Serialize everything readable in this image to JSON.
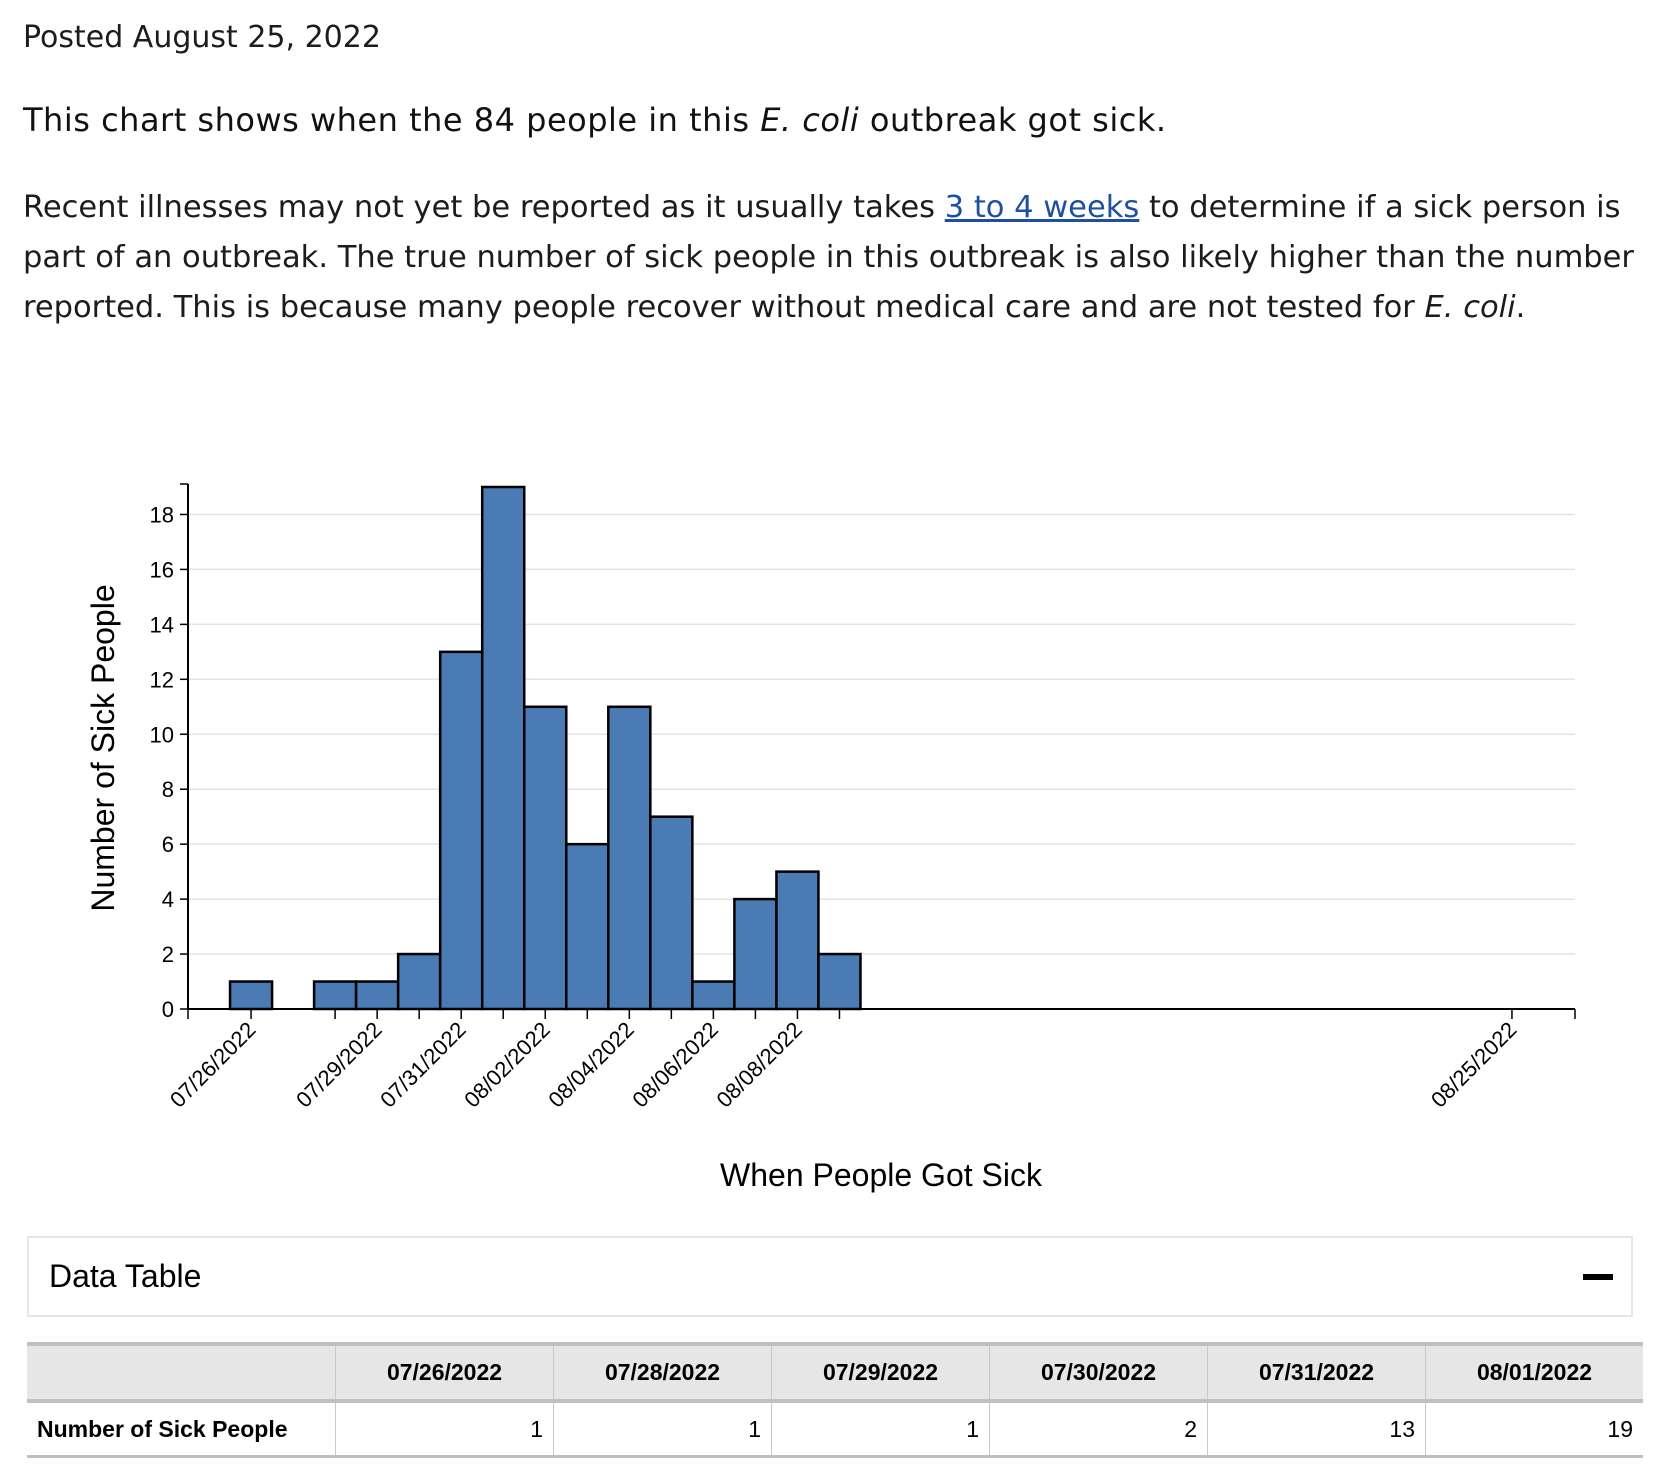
{
  "posted": "Posted August 25, 2022",
  "heading": {
    "pre": "This chart shows when the 84 people in this ",
    "italic": "E. coli",
    "post": " outbreak got sick."
  },
  "paragraph": {
    "part1": "Recent illnesses may not yet be reported as it usually takes ",
    "link": "3 to 4 weeks",
    "part2": " to determine if a sick person is part of an outbreak. The true number of sick people in this outbreak is also likely higher than the number reported. This is because many people recover without medical care and are not tested for ",
    "italic": "E. coli",
    "part3": "."
  },
  "chart_data": {
    "type": "bar",
    "xlabel": "When People Got Sick",
    "ylabel": "Number of Sick People",
    "ylim": [
      0,
      19
    ],
    "yticks": [
      0,
      2,
      4,
      6,
      8,
      10,
      12,
      14,
      16,
      18
    ],
    "xlim": [
      "07/24/2022",
      "08/26/2022"
    ],
    "grid": true,
    "bar_color": "#4a7bb5",
    "categories": [
      "07/26/2022",
      "07/28/2022",
      "07/29/2022",
      "07/30/2022",
      "07/31/2022",
      "08/01/2022",
      "08/02/2022",
      "08/03/2022",
      "08/04/2022",
      "08/05/2022",
      "08/06/2022",
      "08/07/2022",
      "08/08/2022",
      "08/09/2022"
    ],
    "values": [
      1,
      1,
      1,
      2,
      13,
      19,
      11,
      6,
      11,
      7,
      1,
      4,
      5,
      2
    ],
    "xtick_labels": [
      "07/26/2022",
      "07/29/2022",
      "07/31/2022",
      "08/02/2022",
      "08/04/2022",
      "08/06/2022",
      "08/08/2022",
      "08/25/2022"
    ]
  },
  "data_table": {
    "title": "Data Table",
    "toggle_icon": "minus-icon",
    "row_label": "Number of Sick People",
    "columns": [
      "07/26/2022",
      "07/28/2022",
      "07/29/2022",
      "07/30/2022",
      "07/31/2022",
      "08/01/2022"
    ],
    "values": [
      "1",
      "1",
      "1",
      "2",
      "13",
      "19"
    ]
  }
}
